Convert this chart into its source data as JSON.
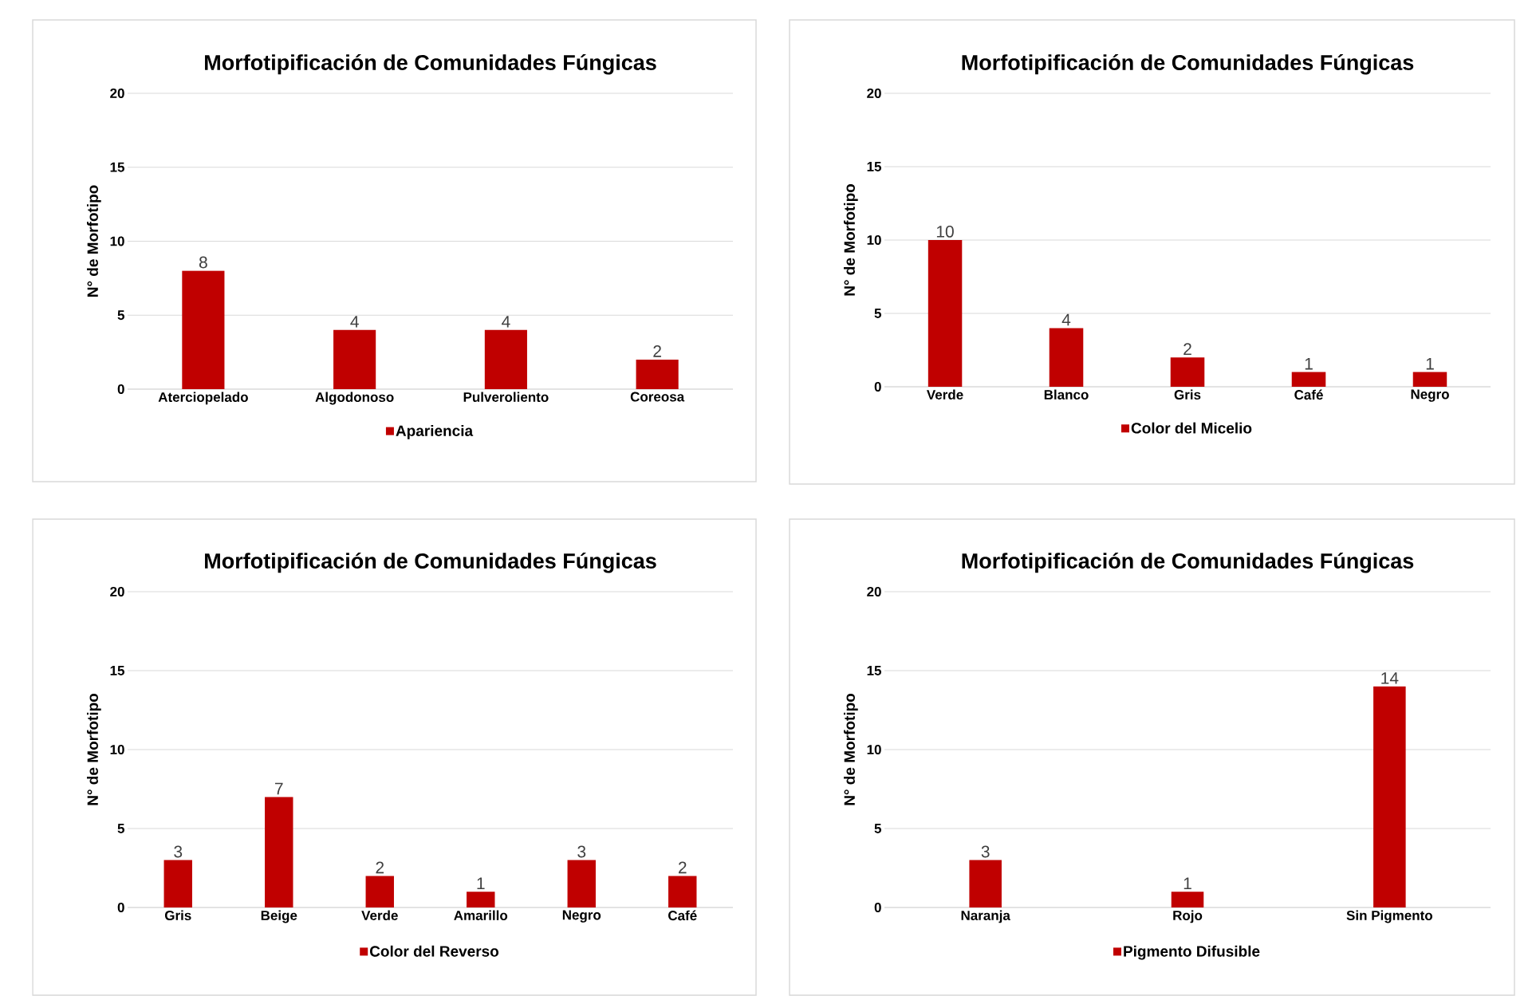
{
  "chart_data": [
    {
      "type": "bar",
      "title": "Morfotipificación de Comunidades Fúngicas",
      "ylabel": "N° de Morfotipo",
      "categories": [
        "Aterciopelado",
        "Algodonoso",
        "Pulveroliento",
        "Coreosa"
      ],
      "series": [
        {
          "name": "Apariencia",
          "color": "#c00000",
          "values": [
            8,
            4,
            4,
            2
          ]
        }
      ],
      "ylim": [
        0,
        20
      ],
      "yticks": [
        0,
        5,
        10,
        15,
        20
      ],
      "grid": "y",
      "legend": "bottom",
      "data_labels": true
    },
    {
      "type": "bar",
      "title": "Morfotipificación de Comunidades Fúngicas",
      "ylabel": "N° de Morfotipo",
      "categories": [
        "Verde",
        "Blanco",
        "Gris",
        "Café",
        "Negro"
      ],
      "series": [
        {
          "name": "Color del Micelio",
          "color": "#c00000",
          "values": [
            10,
            4,
            2,
            1,
            1
          ]
        }
      ],
      "ylim": [
        0,
        20
      ],
      "yticks": [
        0,
        5,
        10,
        15,
        20
      ],
      "grid": "y",
      "legend": "bottom",
      "data_labels": true
    },
    {
      "type": "bar",
      "title": "Morfotipificación de Comunidades Fúngicas",
      "ylabel": "N° de Morfotipo",
      "categories": [
        "Gris",
        "Beige",
        "Verde",
        "Amarillo",
        "Negro",
        "Café"
      ],
      "series": [
        {
          "name": "Color del Reverso",
          "color": "#c00000",
          "values": [
            3,
            7,
            2,
            1,
            3,
            2
          ]
        }
      ],
      "ylim": [
        0,
        20
      ],
      "yticks": [
        0,
        5,
        10,
        15,
        20
      ],
      "grid": "y",
      "legend": "bottom",
      "data_labels": true
    },
    {
      "type": "bar",
      "title": "Morfotipificación de Comunidades Fúngicas",
      "ylabel": "N° de Morfotipo",
      "categories": [
        "Naranja",
        "Rojo",
        "Sin Pigmento"
      ],
      "series": [
        {
          "name": "Pigmento Difusible",
          "color": "#c00000",
          "values": [
            3,
            1,
            14
          ]
        }
      ],
      "ylim": [
        0,
        20
      ],
      "yticks": [
        0,
        5,
        10,
        15,
        20
      ],
      "grid": "y",
      "legend": "bottom",
      "data_labels": true
    }
  ]
}
